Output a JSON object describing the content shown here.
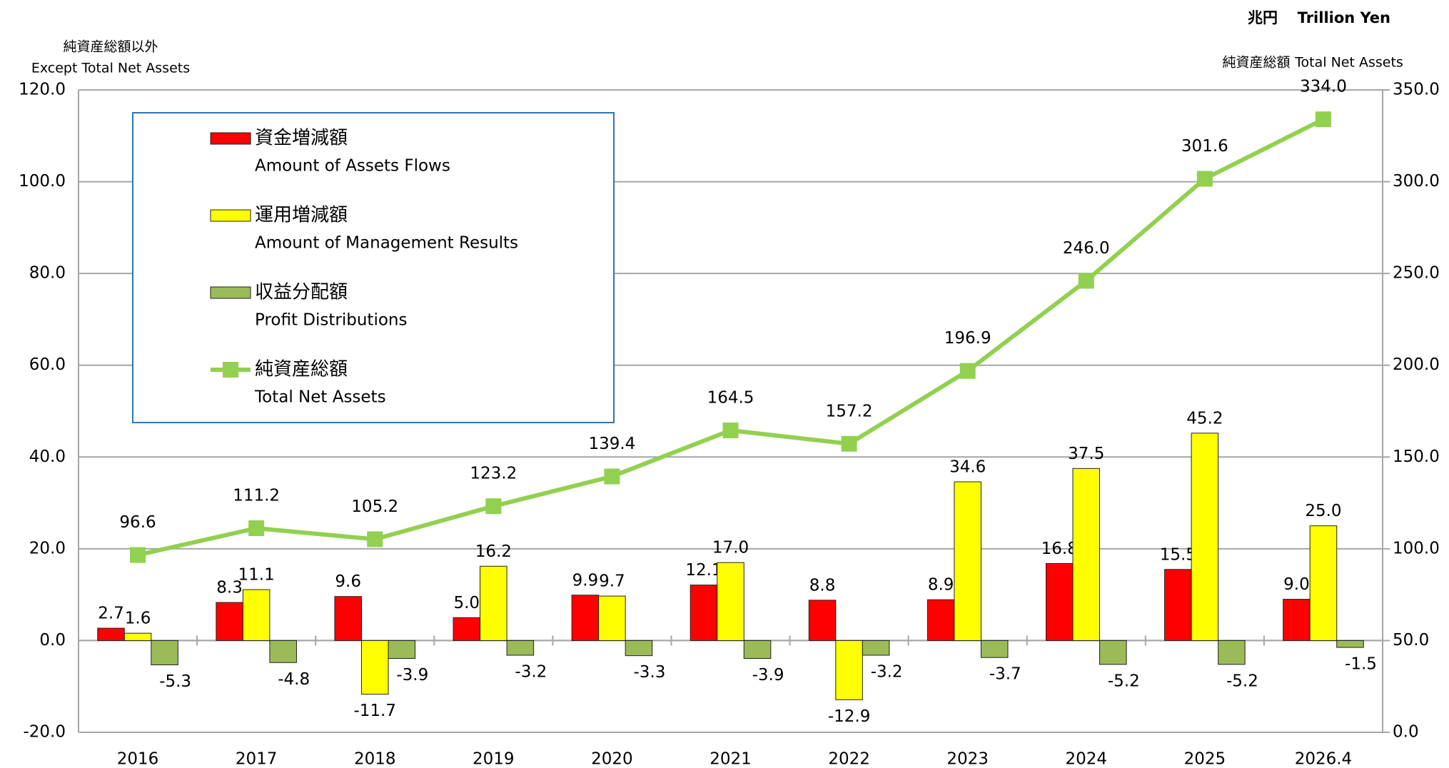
{
  "chart_data": {
    "type": "bar-line",
    "unit_ja": "兆円",
    "unit_en": "Trillion Yen",
    "y_label_ja": "純資産総額以外",
    "y_label_en": "Except Total Net Assets",
    "y2_label_ja": "純資産総額",
    "y2_label_en": "Total Net Assets",
    "categories": [
      "2016",
      "2017",
      "2018",
      "2019",
      "2020",
      "2021",
      "2022",
      "2023",
      "2024",
      "2025",
      "2026.4"
    ],
    "series": [
      {
        "name": "資金増減額",
        "name_en": "Amount of Assets Flows",
        "type": "bar",
        "color": "#ff0000",
        "values": [
          2.7,
          8.3,
          9.6,
          5.0,
          9.9,
          12.1,
          8.8,
          8.9,
          16.8,
          15.5,
          9.0
        ],
        "value_labels": [
          "2.7",
          "8.3",
          "9.6",
          "5.0",
          "9.9",
          "12.1",
          "8.8",
          "8.9",
          "16.8",
          "15.5",
          "9.0"
        ]
      },
      {
        "name": "運用増減額",
        "name_en": "Amount of Management Results",
        "type": "bar",
        "color": "#ffff00",
        "values": [
          1.6,
          11.1,
          -11.7,
          16.2,
          9.7,
          17.0,
          -12.9,
          34.6,
          37.5,
          45.2,
          25.0
        ],
        "value_labels": [
          "1.6",
          "11.1",
          "-11.7",
          "16.2",
          "9.7",
          "17.0",
          "-12.9",
          "34.6",
          "37.5",
          "45.2",
          "25.0"
        ]
      },
      {
        "name": "収益分配額",
        "name_en": "Profit Distributions",
        "type": "bar",
        "color": "#9bbb59",
        "values": [
          -5.3,
          -4.8,
          -3.9,
          -3.2,
          -3.3,
          -3.9,
          -3.2,
          -3.7,
          -5.2,
          -5.2,
          -1.5
        ],
        "value_labels": [
          "-5.3",
          "-4.8",
          "-3.9",
          "-3.2",
          "-3.3",
          "-3.9",
          "-3.2",
          "-3.7",
          "-5.2",
          "-5.2",
          "-1.5"
        ]
      },
      {
        "name": "純資産総額",
        "name_en": "Total Net Assets",
        "type": "line",
        "axis": "y2",
        "color": "#92d050",
        "values": [
          96.6,
          111.2,
          105.2,
          123.2,
          139.4,
          164.5,
          157.2,
          196.9,
          246.0,
          301.6,
          334.0
        ],
        "value_labels": [
          "96.6",
          "111.2",
          "105.2",
          "123.2",
          "139.4",
          "164.5",
          "157.2",
          "196.9",
          "246.0",
          "301.6",
          "334.0"
        ]
      }
    ],
    "ylim": [
      -20,
      120
    ],
    "yticks": [
      {
        "value": -20,
        "label": "-20.0"
      },
      {
        "value": 0,
        "label": "0.0"
      },
      {
        "value": 20,
        "label": "20.0"
      },
      {
        "value": 40,
        "label": "40.0"
      },
      {
        "value": 60,
        "label": "60.0"
      },
      {
        "value": 80,
        "label": "80.0"
      },
      {
        "value": 100,
        "label": "100.0"
      },
      {
        "value": 120,
        "label": "120.0"
      }
    ],
    "y2lim": [
      0,
      350
    ],
    "y2ticks": [
      {
        "value": 0,
        "label": "0.0"
      },
      {
        "value": 50,
        "label": "50.0"
      },
      {
        "value": 100,
        "label": "100.0"
      },
      {
        "value": 150,
        "label": "150.0"
      },
      {
        "value": 200,
        "label": "200.0"
      },
      {
        "value": 250,
        "label": "250.0"
      },
      {
        "value": 300,
        "label": "300.0"
      },
      {
        "value": 350,
        "label": "350.0"
      }
    ],
    "grid": true,
    "legend": "upper left"
  }
}
